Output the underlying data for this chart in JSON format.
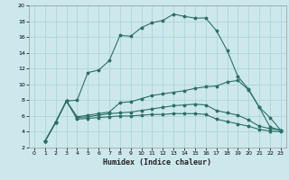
{
  "xlabel": "Humidex (Indice chaleur)",
  "bg_color": "#cce8ec",
  "grid_color": "#aed4d8",
  "line_color": "#2d7068",
  "xlim": [
    -0.5,
    23.5
  ],
  "ylim": [
    2,
    20
  ],
  "xticks": [
    0,
    1,
    2,
    3,
    4,
    5,
    6,
    7,
    8,
    9,
    10,
    11,
    12,
    13,
    14,
    15,
    16,
    17,
    18,
    19,
    20,
    21,
    22,
    23
  ],
  "yticks": [
    2,
    4,
    6,
    8,
    10,
    12,
    14,
    16,
    18,
    20
  ],
  "line1_x": [
    1,
    2,
    3,
    4,
    5,
    6,
    7,
    8,
    9,
    10,
    11,
    12,
    13,
    14,
    15,
    16,
    17,
    18,
    19,
    20,
    21,
    22,
    23
  ],
  "line1_y": [
    2.8,
    5.2,
    7.9,
    8.0,
    11.5,
    11.8,
    13.0,
    16.2,
    16.1,
    17.2,
    17.8,
    18.1,
    18.9,
    18.6,
    18.4,
    18.4,
    16.8,
    14.3,
    11.0,
    9.4,
    7.1,
    5.8,
    4.2
  ],
  "line2_x": [
    1,
    2,
    3,
    4,
    5,
    6,
    7,
    8,
    9,
    10,
    11,
    12,
    13,
    14,
    15,
    16,
    17,
    18,
    19,
    20,
    21,
    22,
    23
  ],
  "line2_y": [
    2.8,
    5.2,
    7.9,
    5.9,
    6.1,
    6.3,
    6.5,
    7.7,
    7.8,
    8.2,
    8.6,
    8.8,
    9.0,
    9.2,
    9.5,
    9.7,
    9.8,
    10.3,
    10.5,
    9.3,
    7.1,
    4.6,
    4.2
  ],
  "line3_x": [
    1,
    2,
    3,
    4,
    5,
    6,
    7,
    8,
    9,
    10,
    11,
    12,
    13,
    14,
    15,
    16,
    17,
    18,
    19,
    20,
    21,
    22,
    23
  ],
  "line3_y": [
    2.8,
    5.2,
    7.9,
    5.8,
    5.9,
    6.1,
    6.3,
    6.4,
    6.5,
    6.7,
    6.9,
    7.1,
    7.3,
    7.4,
    7.5,
    7.4,
    6.7,
    6.4,
    6.1,
    5.5,
    4.7,
    4.4,
    4.2
  ],
  "line4_x": [
    1,
    2,
    3,
    4,
    5,
    6,
    7,
    8,
    9,
    10,
    11,
    12,
    13,
    14,
    15,
    16,
    17,
    18,
    19,
    20,
    21,
    22,
    23
  ],
  "line4_y": [
    2.8,
    5.2,
    7.9,
    5.6,
    5.7,
    5.8,
    5.9,
    6.0,
    6.0,
    6.1,
    6.2,
    6.2,
    6.3,
    6.3,
    6.3,
    6.2,
    5.6,
    5.3,
    5.0,
    4.7,
    4.3,
    4.1,
    4.0
  ]
}
